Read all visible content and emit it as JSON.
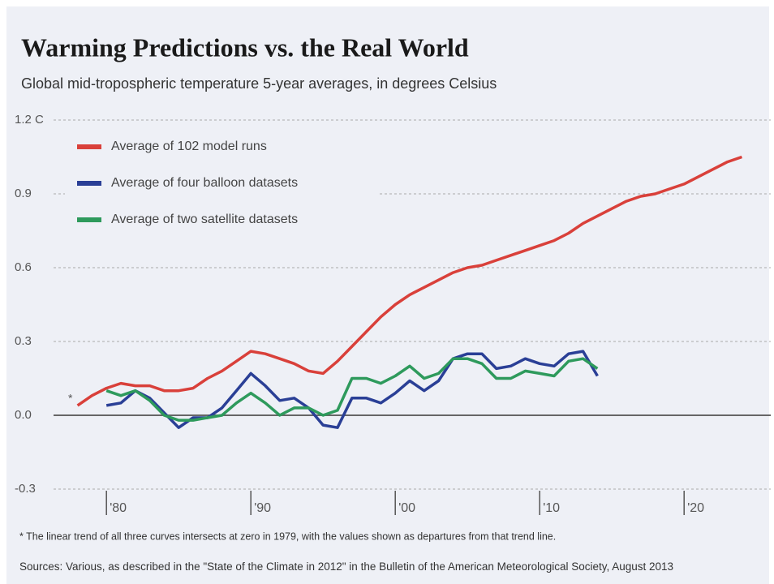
{
  "chart_data": {
    "type": "line",
    "title": "Warming Predictions vs. the Real World",
    "subtitle": "Global mid-tropospheric temperature 5-year averages, in degrees Celsius",
    "annotation": "*",
    "footnote": "* The linear trend of all three curves intersects at zero in 1979, with the values shown as departures from that trend line.",
    "source": "Sources: Various, as described in the \"State of the Climate in 2012\" in the Bulletin of the American Meteorological Society, August 2013",
    "x": [
      1978,
      1979,
      1980,
      1981,
      1982,
      1983,
      1984,
      1985,
      1986,
      1987,
      1988,
      1989,
      1990,
      1991,
      1992,
      1993,
      1994,
      1995,
      1996,
      1997,
      1998,
      1999,
      2000,
      2001,
      2002,
      2003,
      2004,
      2005,
      2006,
      2007,
      2008,
      2009,
      2010,
      2011,
      2012,
      2013,
      2014,
      2015,
      2016,
      2017,
      2018,
      2019,
      2020,
      2021,
      2022,
      2023,
      2024
    ],
    "series": [
      {
        "name": "Average of 102 model runs",
        "color": "#d9403a",
        "values": [
          0.04,
          0.08,
          0.11,
          0.13,
          0.12,
          0.12,
          0.1,
          0.1,
          0.11,
          0.15,
          0.18,
          0.22,
          0.26,
          0.25,
          0.23,
          0.21,
          0.18,
          0.17,
          0.22,
          0.28,
          0.34,
          0.4,
          0.45,
          0.49,
          0.52,
          0.55,
          0.58,
          0.6,
          0.61,
          0.63,
          0.65,
          0.67,
          0.69,
          0.71,
          0.74,
          0.78,
          0.81,
          0.84,
          0.87,
          0.89,
          0.9,
          0.92,
          0.94,
          0.97,
          1.0,
          1.03,
          1.05
        ]
      },
      {
        "name": "Average of four balloon datasets",
        "color": "#2a3f96",
        "values": [
          null,
          null,
          0.04,
          0.05,
          0.1,
          0.07,
          0.01,
          -0.05,
          -0.01,
          -0.01,
          0.03,
          0.1,
          0.17,
          0.12,
          0.06,
          0.07,
          0.03,
          -0.04,
          -0.05,
          0.07,
          0.07,
          0.05,
          0.09,
          0.14,
          0.1,
          0.14,
          0.23,
          0.25,
          0.25,
          0.19,
          0.2,
          0.23,
          0.21,
          0.2,
          0.25,
          0.26,
          0.16,
          null,
          null,
          null,
          null,
          null,
          null,
          null,
          null,
          null,
          null
        ]
      },
      {
        "name": "Average of two satellite datasets",
        "color": "#2e9a5c",
        "values": [
          null,
          null,
          0.1,
          0.08,
          0.1,
          0.06,
          0.0,
          -0.02,
          -0.02,
          -0.01,
          0.0,
          0.05,
          0.09,
          0.05,
          0.0,
          0.03,
          0.03,
          0.0,
          0.02,
          0.15,
          0.15,
          0.13,
          0.16,
          0.2,
          0.15,
          0.17,
          0.23,
          0.23,
          0.21,
          0.15,
          0.15,
          0.18,
          0.17,
          0.16,
          0.22,
          0.23,
          0.19,
          null,
          null,
          null,
          null,
          null,
          null,
          null,
          null,
          null,
          null
        ]
      }
    ],
    "xlim": [
      1976,
      2026
    ],
    "xticks": [
      {
        "value": 1980,
        "label": "'80"
      },
      {
        "value": 1990,
        "label": "'90"
      },
      {
        "value": 2000,
        "label": "'00"
      },
      {
        "value": 2010,
        "label": "'10"
      },
      {
        "value": 2020,
        "label": "'20"
      }
    ],
    "ylim": [
      -0.3,
      1.2
    ],
    "yticks": [
      {
        "value": 1.2,
        "label": "1.2 C"
      },
      0.9,
      0.6,
      0.3,
      {
        "value": 0,
        "label": "0.0"
      },
      -0.3
    ],
    "grid": true
  }
}
